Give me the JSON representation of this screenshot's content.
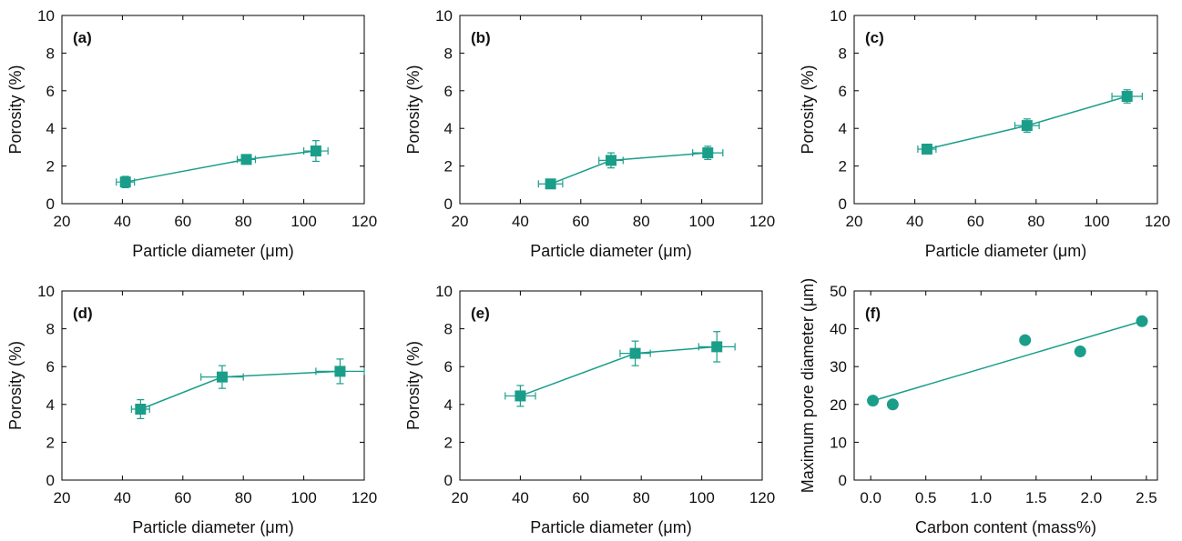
{
  "colors": {
    "series": "#1a9e8a",
    "axis": "#000000"
  },
  "chart_data": [
    {
      "type": "scatter",
      "panel_label": "(a)",
      "xlabel": "Particle diameter (μm)",
      "ylabel": "Porosity (%)",
      "xlim": [
        20,
        120
      ],
      "ylim": [
        0,
        10
      ],
      "xticks": [
        "20",
        "40",
        "60",
        "80",
        "100",
        "120"
      ],
      "yticks": [
        "0",
        "2",
        "4",
        "6",
        "8",
        "10"
      ],
      "marker": "square",
      "connect": "line",
      "series": [
        {
          "x": [
            41,
            81,
            104
          ],
          "y": [
            1.15,
            2.35,
            2.8
          ],
          "xerr": [
            3,
            3,
            4
          ],
          "yerr": [
            0.3,
            0.25,
            0.55
          ]
        }
      ]
    },
    {
      "type": "scatter",
      "panel_label": "(b)",
      "xlabel": "Particle diameter (μm)",
      "ylabel": "Porosity (%)",
      "xlim": [
        20,
        120
      ],
      "ylim": [
        0,
        10
      ],
      "xticks": [
        "20",
        "40",
        "60",
        "80",
        "100",
        "120"
      ],
      "yticks": [
        "0",
        "2",
        "4",
        "6",
        "8",
        "10"
      ],
      "marker": "square",
      "connect": "line",
      "series": [
        {
          "x": [
            50,
            70,
            102
          ],
          "y": [
            1.05,
            2.3,
            2.7
          ],
          "xerr": [
            4,
            4,
            5
          ],
          "yerr": [
            0.15,
            0.4,
            0.35
          ]
        }
      ]
    },
    {
      "type": "scatter",
      "panel_label": "(c)",
      "xlabel": "Particle diameter (μm)",
      "ylabel": "Porosity (%)",
      "xlim": [
        20,
        120
      ],
      "ylim": [
        0,
        10
      ],
      "xticks": [
        "20",
        "40",
        "60",
        "80",
        "100",
        "120"
      ],
      "yticks": [
        "0",
        "2",
        "4",
        "6",
        "8",
        "10"
      ],
      "marker": "square",
      "connect": "line",
      "series": [
        {
          "x": [
            44,
            77,
            110
          ],
          "y": [
            2.9,
            4.15,
            5.7
          ],
          "xerr": [
            3,
            4,
            5
          ],
          "yerr": [
            0.15,
            0.35,
            0.35
          ]
        }
      ]
    },
    {
      "type": "scatter",
      "panel_label": "(d)",
      "xlabel": "Particle diameter (μm)",
      "ylabel": "Porosity (%)",
      "xlim": [
        20,
        120
      ],
      "ylim": [
        0,
        10
      ],
      "xticks": [
        "20",
        "40",
        "60",
        "80",
        "100",
        "120"
      ],
      "yticks": [
        "0",
        "2",
        "4",
        "6",
        "8",
        "10"
      ],
      "marker": "square",
      "connect": "line",
      "series": [
        {
          "x": [
            46,
            73,
            112
          ],
          "y": [
            3.75,
            5.45,
            5.75
          ],
          "xerr": [
            3,
            7,
            8
          ],
          "yerr": [
            0.5,
            0.6,
            0.65
          ]
        }
      ]
    },
    {
      "type": "scatter",
      "panel_label": "(e)",
      "xlabel": "Particle diameter (μm)",
      "ylabel": "Porosity (%)",
      "xlim": [
        20,
        120
      ],
      "ylim": [
        0,
        10
      ],
      "xticks": [
        "20",
        "40",
        "60",
        "80",
        "100",
        "120"
      ],
      "yticks": [
        "0",
        "2",
        "4",
        "6",
        "8",
        "10"
      ],
      "marker": "square",
      "connect": "line",
      "series": [
        {
          "x": [
            40,
            78,
            105
          ],
          "y": [
            4.45,
            6.7,
            7.05
          ],
          "xerr": [
            5,
            5,
            6
          ],
          "yerr": [
            0.55,
            0.65,
            0.8
          ]
        }
      ]
    },
    {
      "type": "scatter",
      "panel_label": "(f)",
      "xlabel": "Carbon content (mass%)",
      "ylabel": "Maximum pore diameter (μm)",
      "xlim": [
        -0.15,
        2.6
      ],
      "ylim": [
        0,
        50
      ],
      "xticks": [
        "0.0",
        "0.5",
        "1.0",
        "1.5",
        "2.0",
        "2.5"
      ],
      "yticks": [
        "0",
        "10",
        "20",
        "30",
        "40",
        "50"
      ],
      "marker": "circle",
      "connect": "none",
      "series": [
        {
          "x": [
            0.02,
            0.2,
            1.4,
            1.9,
            2.46
          ],
          "y": [
            21,
            20,
            37,
            34,
            42
          ]
        }
      ],
      "fit_line": {
        "x": [
          0.0,
          2.46
        ],
        "y": [
          20.8,
          42.0
        ]
      }
    }
  ]
}
